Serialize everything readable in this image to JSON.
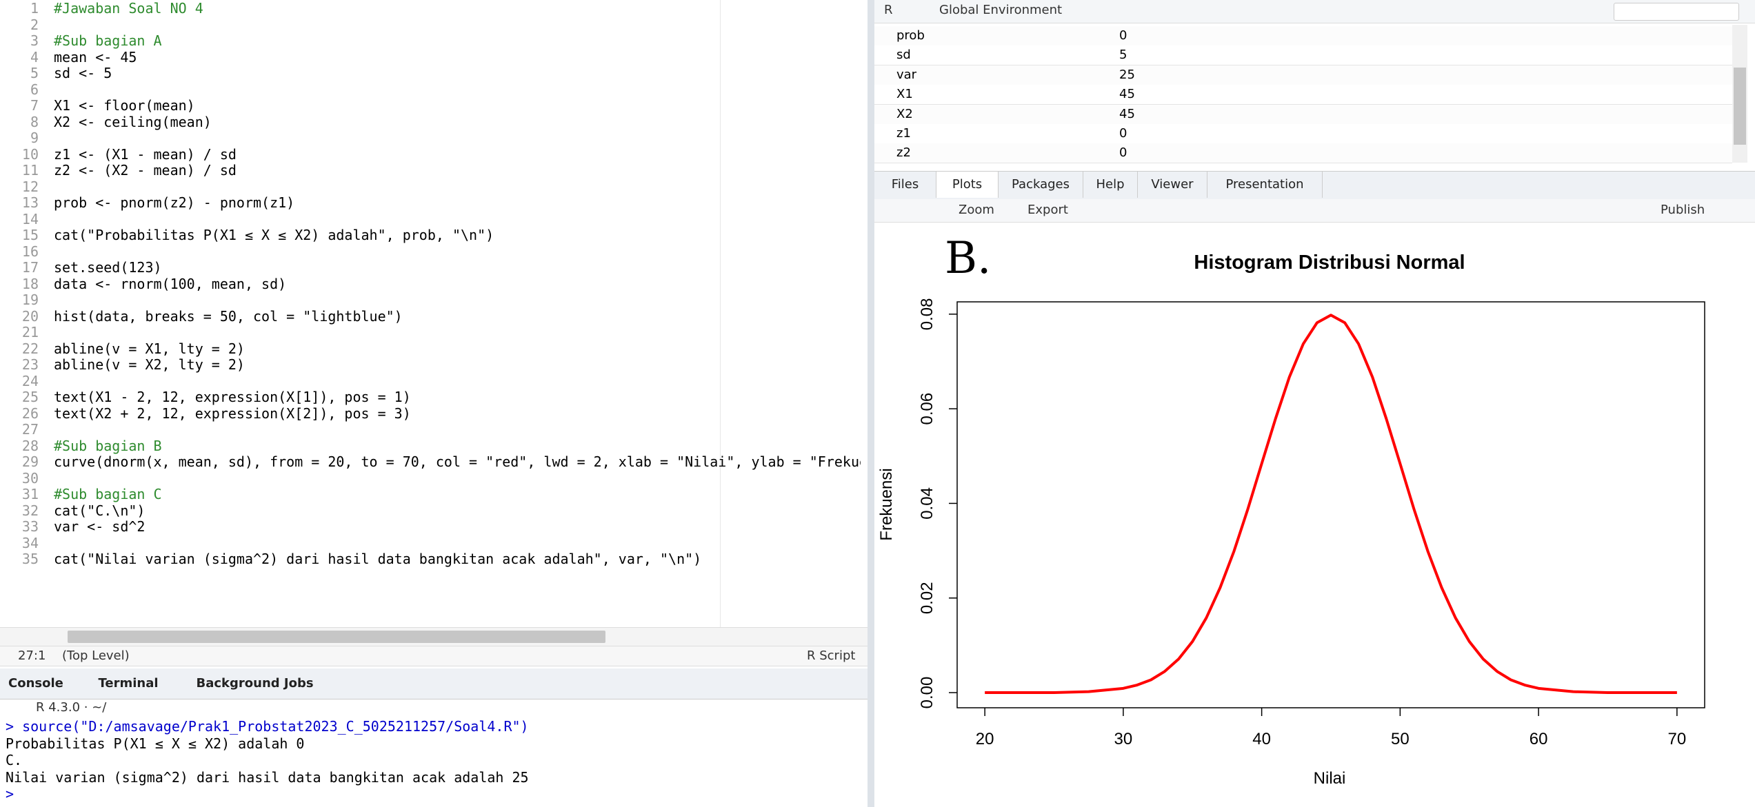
{
  "editor": {
    "line_numbers": [
      1,
      2,
      3,
      4,
      5,
      6,
      7,
      8,
      9,
      10,
      11,
      12,
      13,
      14,
      15,
      16,
      17,
      18,
      19,
      20,
      21,
      22,
      23,
      24,
      25,
      26,
      27,
      28,
      29,
      30,
      31,
      32,
      33,
      34,
      35
    ],
    "lines": [
      "#Jawaban Soal NO 4",
      "",
      "#Sub bagian A",
      "mean <- 45",
      "sd <- 5",
      "",
      "X1 <- floor(mean)",
      "X2 <- ceiling(mean)",
      "",
      "z1 <- (X1 - mean) / sd",
      "z2 <- (X2 - mean) / sd",
      "",
      "prob <- pnorm(z2) - pnorm(z1)",
      "",
      "cat(\"Probabilitas P(X1 ≤ X ≤ X2) adalah\", prob, \"\\n\")",
      "",
      "set.seed(123)",
      "data <- rnorm(100, mean, sd)",
      "",
      "hist(data, breaks = 50, col = \"lightblue\")",
      "",
      "abline(v = X1, lty = 2)",
      "abline(v = X2, lty = 2)",
      "",
      "text(X1 - 2, 12, expression(X[1]), pos = 1)",
      "text(X2 + 2, 12, expression(X[2]), pos = 3)",
      "",
      "#Sub bagian B",
      "curve(dnorm(x, mean, sd), from = 20, to = 70, col = \"red\", lwd = 2, xlab = \"Nilai\", ylab = \"Frekue",
      "",
      "#Sub bagian C",
      "cat(\"C.\\n\")",
      "var <- sd^2",
      "",
      "cat(\"Nilai varian (sigma^2) dari hasil data bangkitan acak adalah\", var, \"\\n\")"
    ],
    "status": {
      "position": "27:1",
      "scope": "(Top Level)",
      "file_type": "R Script"
    }
  },
  "console": {
    "tabs": [
      "Console",
      "Terminal",
      "Background Jobs"
    ],
    "version": "R 4.3.0 · ~/",
    "lines": [
      "> source(\"D:/amsavage/Prak1_Probstat2023_C_5025211257/Soal4.R\")",
      "Probabilitas P(X1 ≤ X ≤ X2) adalah 0",
      "C.",
      "Nilai varian (sigma^2) dari hasil data bangkitan acak adalah 25",
      ">"
    ]
  },
  "environment": {
    "language": "R",
    "scope": "Global Environment",
    "rows": [
      [
        "prob",
        "0"
      ],
      [
        "sd",
        "5"
      ],
      [
        "var",
        "25"
      ],
      [
        "X1",
        "45"
      ],
      [
        "X2",
        "45"
      ],
      [
        "z1",
        "0"
      ],
      [
        "z2",
        "0"
      ]
    ]
  },
  "viewer": {
    "tabs": [
      "Files",
      "Plots",
      "Packages",
      "Help",
      "Viewer",
      "Presentation"
    ],
    "zoom": "Zoom",
    "export": "Export",
    "publish": "Publish",
    "annotation": "B."
  },
  "chart_data": {
    "type": "line",
    "title": "Histogram Distribusi Normal",
    "xlabel": "Nilai",
    "ylabel": "Frekuensi",
    "x": [
      20,
      25,
      27.5,
      30,
      31,
      32,
      33,
      34,
      35,
      36,
      37,
      38,
      39,
      40,
      41,
      42,
      43,
      44,
      45,
      46,
      47,
      48,
      49,
      50,
      51,
      52,
      53,
      54,
      55,
      56,
      57,
      58,
      59,
      60,
      62.5,
      65,
      70
    ],
    "series": [
      {
        "name": "dnorm",
        "color": "#ff0000",
        "values": [
          0,
          0,
          0.0002,
          0.0009,
          0.0016,
          0.0027,
          0.0045,
          0.0071,
          0.0108,
          0.0158,
          0.0222,
          0.0299,
          0.0388,
          0.0484,
          0.0579,
          0.0667,
          0.0737,
          0.0782,
          0.0798,
          0.0782,
          0.0737,
          0.0667,
          0.0579,
          0.0484,
          0.0388,
          0.0299,
          0.0222,
          0.0158,
          0.0108,
          0.0071,
          0.0045,
          0.0027,
          0.0016,
          0.0009,
          0.0002,
          0,
          0
        ]
      }
    ],
    "xlim": [
      18,
      72
    ],
    "ylim": [
      -0.0032,
      0.0826
    ],
    "xticks": [
      20,
      30,
      40,
      50,
      60,
      70
    ],
    "yticks": [
      {
        "value": 0,
        "label": "0.00"
      },
      {
        "value": 0.02,
        "label": "0.02"
      },
      {
        "value": 0.04,
        "label": "0.04"
      },
      {
        "value": 0.06,
        "label": "0.06"
      },
      {
        "value": 0.08,
        "label": "0.08"
      }
    ]
  }
}
